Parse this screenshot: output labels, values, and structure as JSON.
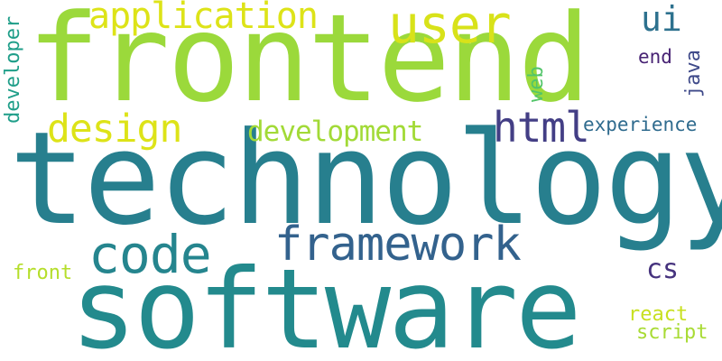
{
  "words": {
    "frontend": {
      "text": "frontend",
      "color": "#9bd93b"
    },
    "technology": {
      "text": "technology",
      "color": "#277f8e"
    },
    "software": {
      "text": "software",
      "color": "#238a8d"
    },
    "framework": {
      "text": "framework",
      "color": "#33628d"
    },
    "code": {
      "text": "code",
      "color": "#25858e"
    },
    "design": {
      "text": "design",
      "color": "#dde318"
    },
    "application": {
      "text": "application",
      "color": "#dde318"
    },
    "user": {
      "text": "user",
      "color": "#d8e219"
    },
    "development": {
      "text": "development",
      "color": "#a2da37"
    },
    "html": {
      "text": "html",
      "color": "#433e85"
    },
    "ui": {
      "text": "ui",
      "color": "#2d718e"
    },
    "end": {
      "text": "end",
      "color": "#482374"
    },
    "experience": {
      "text": "experience",
      "color": "#2f6b8e"
    },
    "cs": {
      "text": "cs",
      "color": "#46337e"
    },
    "front": {
      "text": "front",
      "color": "#b5de2b"
    },
    "react": {
      "text": "react",
      "color": "#c8e020"
    },
    "script": {
      "text": "script",
      "color": "#a8db34"
    },
    "developer": {
      "text": "developer",
      "color": "#1f9e89"
    },
    "web": {
      "text": "web",
      "color": "#52c569"
    },
    "java": {
      "text": "java",
      "color": "#3e4989"
    }
  }
}
